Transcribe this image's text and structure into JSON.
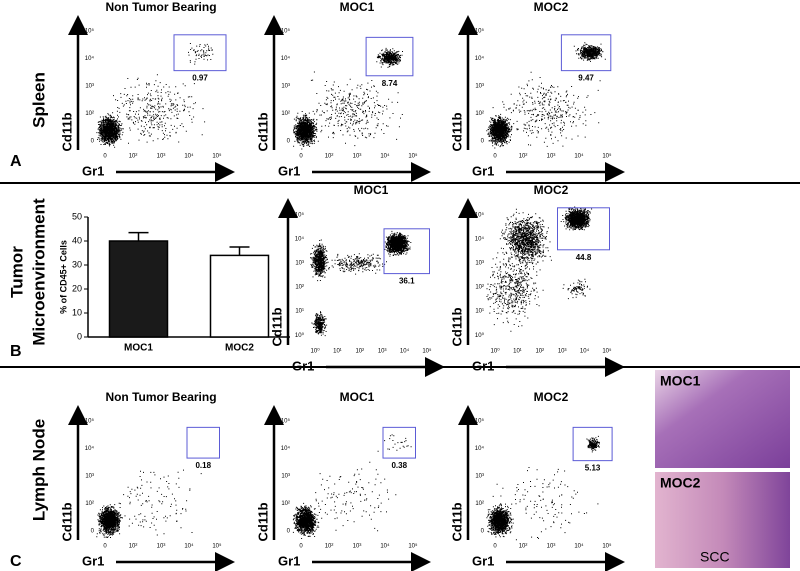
{
  "panel_a": {
    "letter": "A",
    "tissue": "Spleen",
    "plots": [
      {
        "title": "Non Tumor Bearing",
        "gate": 0.97
      },
      {
        "title": "MOC1",
        "gate": 8.74
      },
      {
        "title": "MOC2",
        "gate": 9.47
      }
    ]
  },
  "panel_b": {
    "letter": "B",
    "tissue": [
      "Tumor",
      "Microenvironment"
    ],
    "plots": [
      {
        "title": "MOC1",
        "gate": 36.1
      },
      {
        "title": "MOC2",
        "gate": 44.8
      }
    ]
  },
  "panel_c": {
    "letter": "C",
    "tissue": "Lymph Node",
    "plots": [
      {
        "title": "Non Tumor Bearing",
        "gate": 0.18
      },
      {
        "title": "MOC1",
        "gate": 0.38
      },
      {
        "title": "MOC2",
        "gate": 5.13
      }
    ],
    "histology": [
      "MOC1",
      "MOC2"
    ],
    "histology_note": "SCC"
  },
  "axes": {
    "y_label": "Cd11b",
    "x_label": "Gr1",
    "ticks": [
      "0",
      "10²",
      "10³",
      "10⁴",
      "10⁵"
    ],
    "log_ticks": [
      "10⁰",
      "10¹",
      "10²",
      "10³",
      "10⁴",
      "10⁵"
    ]
  },
  "chart_data": {
    "type": "bar",
    "ylabel": "% of CD45+ Cells",
    "categories": [
      "MOC1",
      "MOC2"
    ],
    "values": [
      40,
      34
    ],
    "errors": [
      3.5,
      3.5
    ],
    "colors": [
      "#1a1a1a",
      "#ffffff"
    ],
    "ylim": [
      0,
      50
    ],
    "yticks": [
      0,
      10,
      20,
      30,
      40,
      50
    ]
  }
}
